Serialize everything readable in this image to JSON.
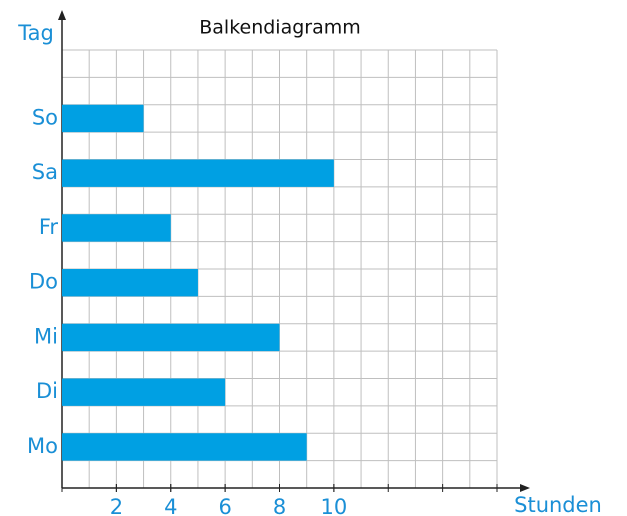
{
  "chart_data": {
    "type": "barh",
    "title": "Balkendiagramm",
    "ylabel": "Tag",
    "xlabel": "Stunden",
    "categories": [
      "Mo",
      "Di",
      "Mi",
      "Do",
      "Fr",
      "Sa",
      "So"
    ],
    "values": [
      9,
      6,
      8,
      5,
      4,
      10,
      3
    ],
    "color": "#00a0e3",
    "xlim": [
      0,
      16
    ],
    "xticks": [
      2,
      4,
      6,
      8,
      10
    ],
    "grid": true
  }
}
